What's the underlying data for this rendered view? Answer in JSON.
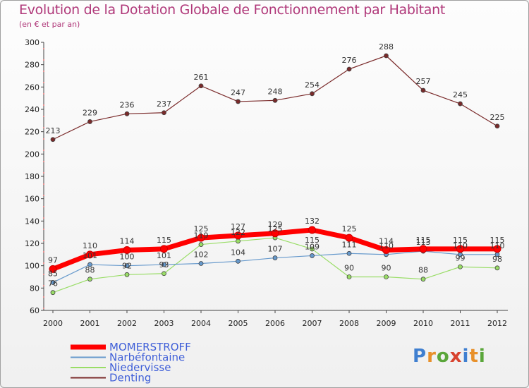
{
  "title": "Evolution de la Dotation Globale de Fonctionnement par Habitant",
  "subtitle": "(en € et par an)",
  "logo": {
    "letters": [
      "P",
      "r",
      "o",
      "x",
      "i",
      "t",
      "i"
    ],
    "colors": [
      "#3f7fd0",
      "#e8902a",
      "#5aa63a",
      "#d8432f",
      "#3f7fd0",
      "#e8902a",
      "#5aa63a"
    ]
  },
  "chart_data": {
    "type": "line",
    "title": "Evolution de la Dotation Globale de Fonctionnement par Habitant",
    "ylabel": "(en € et par an)",
    "xlabel": "",
    "categories": [
      "2000",
      "2001",
      "2002",
      "2003",
      "2004",
      "2005",
      "2006",
      "2007",
      "2008",
      "2009",
      "2010",
      "2011",
      "2012"
    ],
    "ylim": [
      60,
      300
    ],
    "yticks": [
      60,
      80,
      100,
      120,
      140,
      160,
      180,
      200,
      220,
      240,
      260,
      280,
      300
    ],
    "grid": false,
    "legend_position": "bottom-left",
    "series": [
      {
        "name": "Denting",
        "color": "#7a2a2a",
        "values": [
          213,
          229,
          236,
          237,
          261,
          247,
          248,
          254,
          276,
          288,
          257,
          245,
          225
        ]
      },
      {
        "name": "Niedervisse",
        "color": "#99dd66",
        "values": [
          76,
          88,
          92,
          93,
          119,
          122,
          125,
          115,
          90,
          90,
          88,
          99,
          98
        ]
      },
      {
        "name": "Narbéfontaine",
        "color": "#6699cc",
        "values": [
          85,
          101,
          100,
          101,
          102,
          104,
          107,
          109,
          111,
          110,
          113,
          110,
          110
        ]
      },
      {
        "name": "MOMERSTROFF",
        "color": "#ff0000",
        "values": [
          97,
          110,
          114,
          115,
          125,
          127,
          129,
          132,
          125,
          114,
          115,
          115,
          115
        ]
      }
    ],
    "legend_order": [
      "MOMERSTROFF",
      "Narbéfontaine",
      "Niedervisse",
      "Denting"
    ]
  }
}
